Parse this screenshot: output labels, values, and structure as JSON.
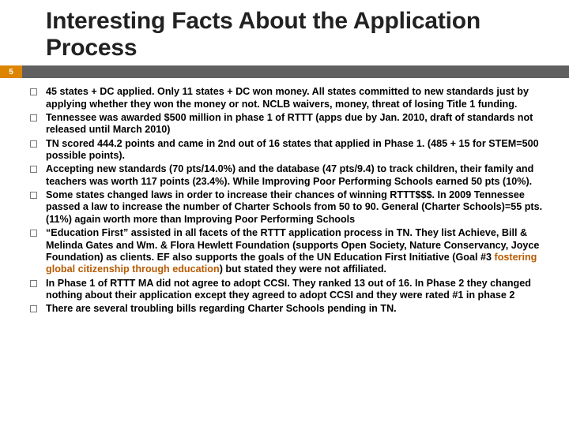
{
  "page_number": "5",
  "title": "Interesting Facts About the Application Process",
  "colors": {
    "badge_bg": "#dd8500",
    "bar_bg": "#606060",
    "highlight": "#b85a00",
    "title_text": "#222222",
    "body_text": "#000000",
    "bullet_border": "#777777"
  },
  "bullets": [
    {
      "type": "plain",
      "text": "45 states + DC applied.  Only 11 states + DC won money.  All states committed to new standards just by applying whether they won the money or not.  NCLB waivers, money, threat of losing Title 1 funding."
    },
    {
      "type": "plain",
      "text": "Tennessee was awarded $500 million in phase 1 of RTTT (apps due by Jan. 2010, draft of standards not released until March 2010)"
    },
    {
      "type": "plain",
      "text": "TN scored 444.2 points and came in 2nd out of 16 states that applied in Phase 1.  (485 + 15 for STEM=500 possible points)."
    },
    {
      "type": "plain",
      "text": "Accepting new standards (70 pts/14.0%) and the database (47 pts/9.4) to track children, their family and teachers was worth 117 points (23.4%).  While Improving Poor Performing Schools earned 50 pts (10%)."
    },
    {
      "type": "plain",
      "text": "Some states changed laws in order to increase their chances of winning RTTT$$$.  In 2009 Tennessee passed a law to increase the number of Charter Schools from 50 to 90.  General (Charter Schools)=55 pts. (11%) again worth more than Improving Poor Performing Schools"
    },
    {
      "type": "highlight",
      "pre": "“Education First” assisted in all facets of the RTTT application process in TN.  They list Achieve, Bill & Melinda Gates and Wm. & Flora Hewlett Foundation (supports Open Society, Nature Conservancy, Joyce Foundation) as clients.  EF also supports the goals of the UN Education First Initiative (Goal #3 ",
      "hl": "fostering global citizenship through education",
      "post": ")  but stated they were not affiliated."
    },
    {
      "type": "plain",
      "text": "In Phase 1 of RTTT MA did not agree to adopt CCSI.  They ranked 13 out of 16.  In Phase 2 they changed nothing about their application except they agreed to adopt CCSI and they were rated #1 in phase 2"
    },
    {
      "type": "plain",
      "text": "There are several troubling bills regarding Charter Schools pending in TN."
    }
  ]
}
